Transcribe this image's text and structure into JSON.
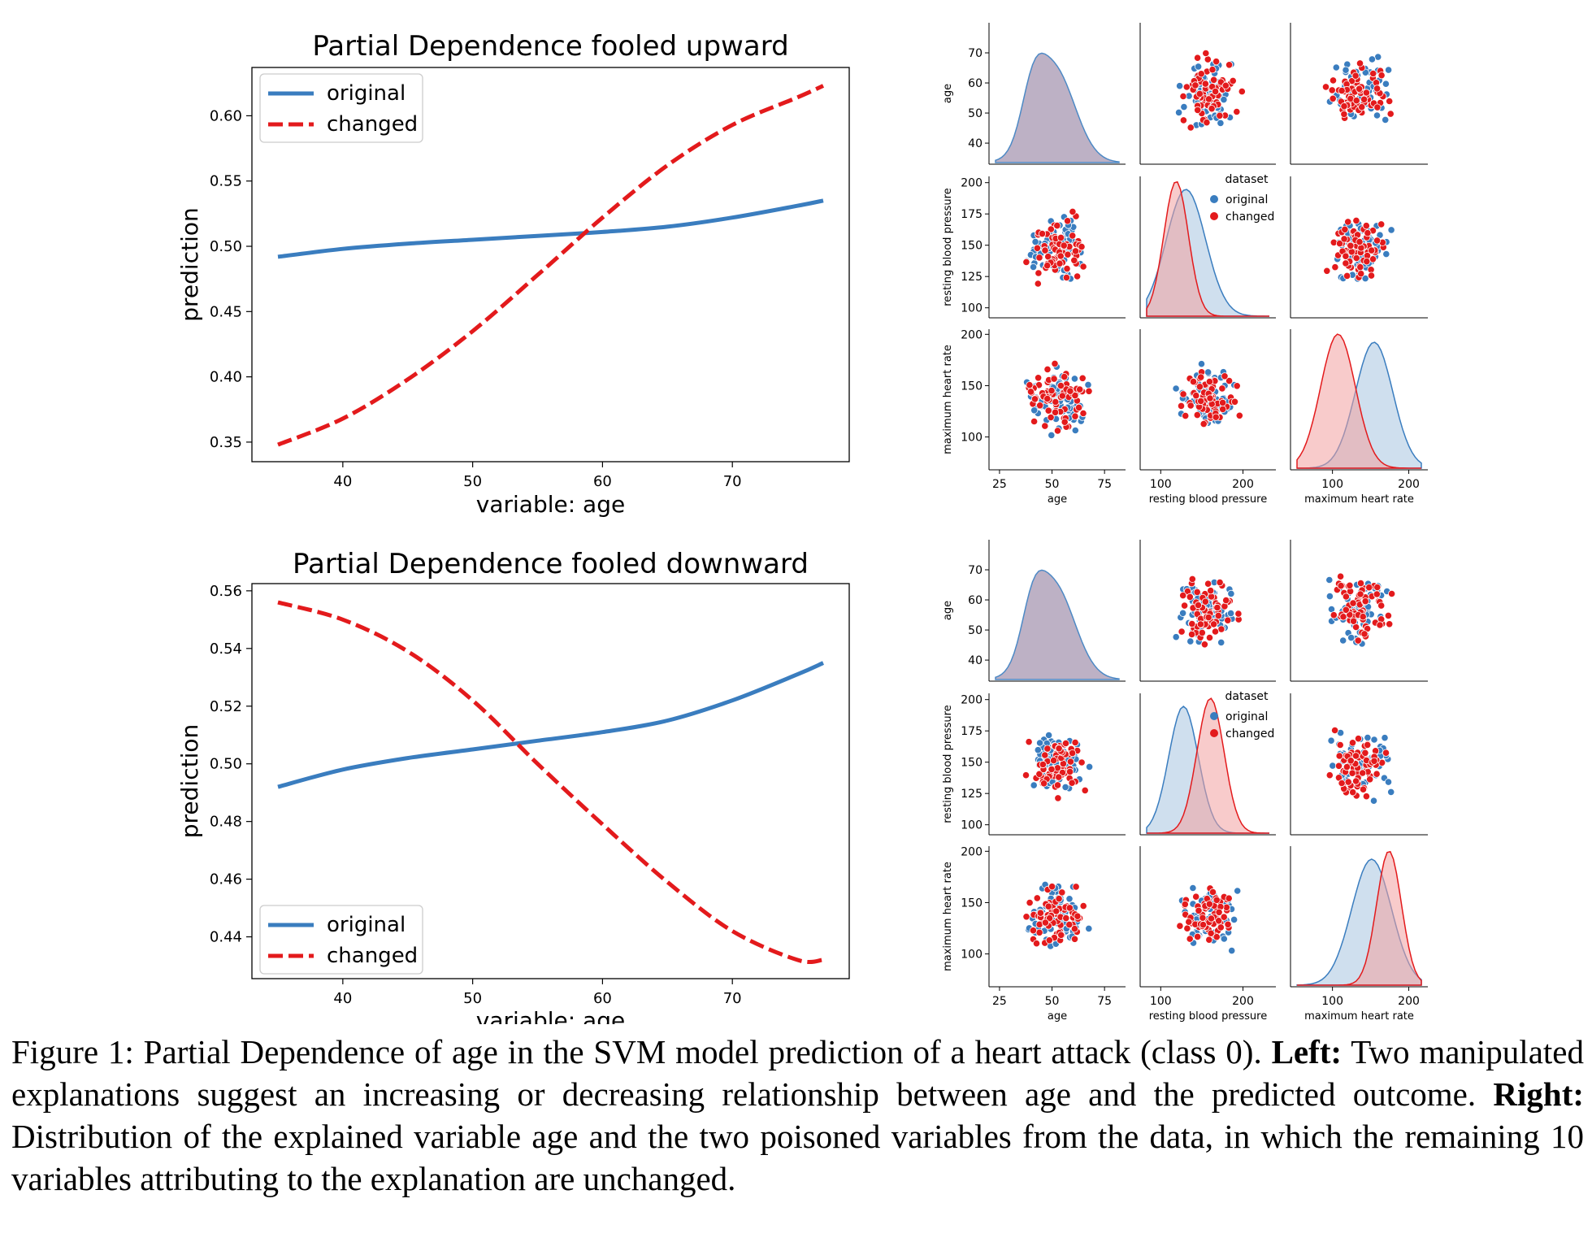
{
  "colors": {
    "original": "#3a7dbf",
    "changed": "#e31a1c",
    "kde_original_fill": "#a8c4e0",
    "kde_changed_fill": "#f2a0a0"
  },
  "pd_charts": [
    {
      "title": "Partial Dependence fooled upward",
      "xlabel": "variable: age",
      "ylabel": "prediction",
      "xticks": [
        40,
        50,
        60,
        70
      ],
      "yticks": [
        "0.35",
        "0.40",
        "0.45",
        "0.50",
        "0.55",
        "0.60"
      ],
      "legend": [
        "original",
        "changed"
      ]
    },
    {
      "title": "Partial Dependence fooled downward",
      "xlabel": "variable: age",
      "ylabel": "prediction",
      "xticks": [
        40,
        50,
        60,
        70
      ],
      "yticks": [
        "0.44",
        "0.46",
        "0.48",
        "0.50",
        "0.52",
        "0.54",
        "0.56"
      ],
      "legend": [
        "original",
        "changed"
      ]
    }
  ],
  "pairplot_labels": {
    "vars": [
      "age",
      "resting blood pressure",
      "maximum heart rate"
    ],
    "age_ticks": [
      "40",
      "50",
      "60",
      "70"
    ],
    "bp_ticks": [
      "100",
      "125",
      "150",
      "175",
      "200"
    ],
    "hr_ticks": [
      "100",
      "150",
      "200"
    ],
    "x_age_ticks": [
      "25",
      "50",
      "75"
    ],
    "x_bp_ticks": [
      "100",
      "200"
    ],
    "x_hr_ticks": [
      "100",
      "200"
    ],
    "legend_title": "dataset",
    "legend_items": [
      "original",
      "changed"
    ]
  },
  "chart_data": [
    {
      "type": "line",
      "title": "Partial Dependence fooled upward",
      "xlabel": "variable: age",
      "ylabel": "prediction",
      "xlim": [
        33,
        79
      ],
      "ylim": [
        0.335,
        0.637
      ],
      "legend_position": "upper-left",
      "series": [
        {
          "name": "original",
          "style": "solid",
          "x": [
            35,
            40,
            45,
            50,
            55,
            60,
            65,
            70,
            75,
            77
          ],
          "y": [
            0.492,
            0.498,
            0.502,
            0.505,
            0.508,
            0.511,
            0.515,
            0.522,
            0.531,
            0.535
          ]
        },
        {
          "name": "changed",
          "style": "dashed",
          "x": [
            35,
            40,
            45,
            50,
            55,
            60,
            65,
            70,
            75,
            77
          ],
          "y": [
            0.348,
            0.368,
            0.398,
            0.435,
            0.478,
            0.522,
            0.562,
            0.593,
            0.614,
            0.623
          ]
        }
      ]
    },
    {
      "type": "line",
      "title": "Partial Dependence fooled downward",
      "xlabel": "variable: age",
      "ylabel": "prediction",
      "xlim": [
        33,
        79
      ],
      "ylim": [
        0.4255,
        0.5625
      ],
      "legend_position": "lower-left",
      "series": [
        {
          "name": "original",
          "style": "solid",
          "x": [
            35,
            40,
            45,
            50,
            55,
            60,
            65,
            70,
            75,
            77
          ],
          "y": [
            0.492,
            0.498,
            0.502,
            0.505,
            0.508,
            0.511,
            0.515,
            0.522,
            0.531,
            0.535
          ]
        },
        {
          "name": "changed",
          "style": "dashed",
          "x": [
            35,
            40,
            45,
            50,
            55,
            60,
            65,
            70,
            75,
            77
          ],
          "y": [
            0.556,
            0.55,
            0.539,
            0.522,
            0.5,
            0.479,
            0.459,
            0.442,
            0.432,
            0.432
          ]
        }
      ]
    }
  ],
  "caption": {
    "lead": "Figure 1: Partial Dependence of age in the SVM model prediction of a heart attack (class 0). ",
    "left_label": "Left:",
    "left_text": " Two manipulated explanations suggest an increasing or decreasing relationship between age and the predicted outcome. ",
    "right_label": "Right:",
    "right_text": " Distribution of the explained variable age and the two poisoned variables from the data, in which the remaining 10 variables attributing to the explanation are unchanged."
  }
}
